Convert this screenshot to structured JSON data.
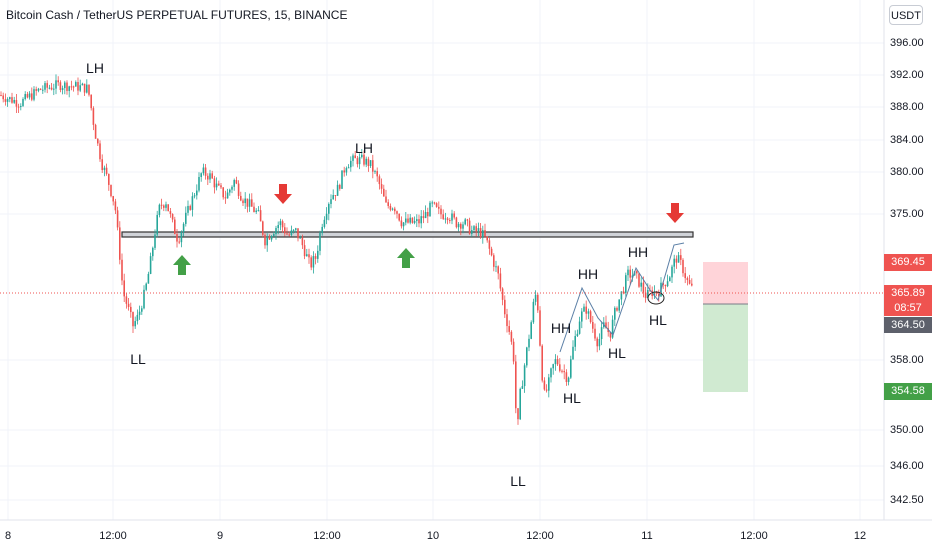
{
  "header": {
    "symbol_title": "Bitcoin Cash / TetherUS PERPETUAL FUTURES, 15, BINANCE",
    "currency_button": "USDT"
  },
  "colors": {
    "up": "#26a69a",
    "down": "#ef5350",
    "arrow_up": "#43a047",
    "arrow_down": "#e53935",
    "target_zone": "#c8e6c9",
    "stop_zone": "#ffcdd2",
    "resistance_line": "#555555",
    "current_price": "#ef5350"
  },
  "chart_data": {
    "type": "candlestick",
    "ylim": [
      340.5,
      398.5
    ],
    "y_ticks": [
      "396.00",
      "392.00",
      "388.00",
      "384.00",
      "380.00",
      "375.00",
      "358.00",
      "350.00",
      "346.00",
      "342.50"
    ],
    "y_tick_values": [
      396,
      392,
      388,
      384,
      380,
      375,
      358,
      350,
      346,
      342.5
    ],
    "x_ticks": [
      "8",
      "12:00",
      "9",
      "12:00",
      "10",
      "12:00",
      "11",
      "12:00",
      "12"
    ],
    "price_labels": {
      "stop": "369.45",
      "current": "365.89",
      "countdown": "08:57",
      "entry": "364.50",
      "target": "354.58"
    },
    "horizontal_level": 372.8,
    "annotations": [
      "LH",
      "LL",
      "LH",
      "HH",
      "HH",
      "HH",
      "HL",
      "HL",
      "HL",
      "LL"
    ],
    "price_path": [
      [
        0,
        389.5
      ],
      [
        20,
        388.5
      ],
      [
        40,
        390.2
      ],
      [
        60,
        390.8
      ],
      [
        80,
        390.5
      ],
      [
        88,
        390.3
      ],
      [
        95,
        385
      ],
      [
        102,
        381
      ],
      [
        108,
        379
      ],
      [
        115,
        376
      ],
      [
        120,
        370
      ],
      [
        123,
        366
      ],
      [
        128,
        364
      ],
      [
        133,
        362
      ],
      [
        138,
        363
      ],
      [
        145,
        366
      ],
      [
        150,
        369
      ],
      [
        155,
        373
      ],
      [
        160,
        376
      ],
      [
        166,
        376.5
      ],
      [
        172,
        374
      ],
      [
        178,
        372
      ],
      [
        184,
        374
      ],
      [
        190,
        376
      ],
      [
        196,
        378
      ],
      [
        202,
        380
      ],
      [
        210,
        379.5
      ],
      [
        218,
        378
      ],
      [
        226,
        377
      ],
      [
        234,
        379
      ],
      [
        242,
        377
      ],
      [
        250,
        376
      ],
      [
        258,
        375
      ],
      [
        265,
        372
      ],
      [
        272,
        373
      ],
      [
        280,
        374
      ],
      [
        288,
        372.5
      ],
      [
        296,
        373
      ],
      [
        304,
        371
      ],
      [
        310,
        369
      ],
      [
        316,
        370
      ],
      [
        322,
        374
      ],
      [
        330,
        377
      ],
      [
        338,
        378
      ],
      [
        346,
        381
      ],
      [
        354,
        381.5
      ],
      [
        362,
        381.5
      ],
      [
        370,
        381
      ],
      [
        378,
        379
      ],
      [
        386,
        376
      ],
      [
        394,
        376
      ],
      [
        402,
        374
      ],
      [
        410,
        374
      ],
      [
        418,
        374
      ],
      [
        426,
        375
      ],
      [
        432,
        376
      ],
      [
        440,
        375
      ],
      [
        448,
        375
      ],
      [
        456,
        374
      ],
      [
        464,
        374
      ],
      [
        472,
        373
      ],
      [
        480,
        373
      ],
      [
        486,
        372
      ],
      [
        492,
        370
      ],
      [
        498,
        368
      ],
      [
        504,
        364
      ],
      [
        510,
        361
      ],
      [
        514,
        358
      ],
      [
        517,
        349
      ],
      [
        520,
        354
      ],
      [
        524,
        357
      ],
      [
        528,
        360
      ],
      [
        532,
        363
      ],
      [
        535,
        366
      ],
      [
        538,
        364
      ],
      [
        541,
        358
      ],
      [
        544,
        354
      ],
      [
        548,
        355
      ],
      [
        552,
        357
      ],
      [
        556,
        358
      ],
      [
        562,
        357
      ],
      [
        568,
        356
      ],
      [
        574,
        360
      ],
      [
        580,
        363
      ],
      [
        586,
        364
      ],
      [
        592,
        362
      ],
      [
        598,
        360
      ],
      [
        604,
        362
      ],
      [
        610,
        361
      ],
      [
        616,
        364
      ],
      [
        622,
        366
      ],
      [
        628,
        368
      ],
      [
        634,
        368
      ],
      [
        640,
        367
      ],
      [
        646,
        365.5
      ],
      [
        652,
        366
      ],
      [
        658,
        366
      ],
      [
        664,
        367
      ],
      [
        670,
        368
      ],
      [
        676,
        370
      ],
      [
        682,
        369
      ],
      [
        688,
        367
      ],
      [
        694,
        366
      ]
    ]
  },
  "annotation_positions_note": ""
}
